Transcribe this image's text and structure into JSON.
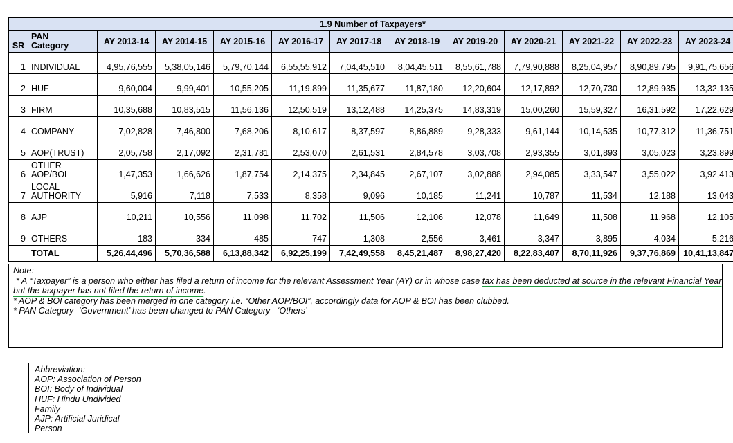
{
  "table": {
    "title": "1.9 Number of Taxpayers*",
    "col_sr": "SR",
    "col_pan_line1": "PAN",
    "col_pan_line2": "Category",
    "years": [
      "AY 2013-14",
      "AY 2014-15",
      "AY 2015-16",
      "AY 2016-17",
      "AY 2017-18",
      "AY 2018-19",
      "AY 2019-20",
      "AY 2020-21",
      "AY 2021-22",
      "AY 2022-23",
      "AY 2023-24"
    ],
    "rows": [
      {
        "sr": "1",
        "cat1": "",
        "cat2": "INDIVIDUAL",
        "values": [
          "4,95,76,555",
          "5,38,05,146",
          "5,79,70,144",
          "6,55,55,912",
          "7,04,45,510",
          "8,04,45,511",
          "8,55,61,788",
          "7,79,90,888",
          "8,25,04,957",
          "8,90,89,795",
          "9,91,75,656"
        ]
      },
      {
        "sr": "2",
        "cat1": "",
        "cat2": "HUF",
        "values": [
          "9,60,004",
          "9,99,401",
          "10,55,205",
          "11,19,899",
          "11,35,677",
          "11,87,180",
          "12,20,604",
          "12,17,892",
          "12,70,730",
          "12,89,935",
          "13,32,135"
        ]
      },
      {
        "sr": "3",
        "cat1": "",
        "cat2": "FIRM",
        "values": [
          "10,35,688",
          "10,83,515",
          "11,56,136",
          "12,50,519",
          "13,12,488",
          "14,25,375",
          "14,83,319",
          "15,00,260",
          "15,59,327",
          "16,31,592",
          "17,22,629"
        ]
      },
      {
        "sr": "4",
        "cat1": "",
        "cat2": "COMPANY",
        "values": [
          "7,02,828",
          "7,46,800",
          "7,68,206",
          "8,10,617",
          "8,37,597",
          "8,86,889",
          "9,28,333",
          "9,61,144",
          "10,14,535",
          "10,77,312",
          "11,36,751"
        ]
      },
      {
        "sr": "5",
        "cat1": "",
        "cat2": "AOP(TRUST)",
        "values": [
          "2,05,758",
          "2,17,092",
          "2,31,781",
          "2,53,070",
          "2,61,531",
          "2,84,578",
          "3,03,708",
          "2,93,355",
          "3,01,893",
          "3,05,023",
          "3,23,899"
        ]
      },
      {
        "sr": "6",
        "cat1": "OTHER",
        "cat2": "AOP/BOI",
        "values": [
          "1,47,353",
          "1,66,626",
          "1,87,754",
          "2,14,375",
          "2,34,845",
          "2,67,107",
          "3,02,888",
          "2,94,085",
          "3,33,547",
          "3,55,022",
          "3,92,413"
        ]
      },
      {
        "sr": "7",
        "cat1": "LOCAL",
        "cat2": "AUTHORITY",
        "values": [
          "5,916",
          "7,118",
          "7,533",
          "8,358",
          "9,096",
          "10,185",
          "11,241",
          "10,787",
          "11,534",
          "12,188",
          "13,043"
        ]
      },
      {
        "sr": "8",
        "cat1": "",
        "cat2": "AJP",
        "values": [
          "10,211",
          "10,556",
          "11,098",
          "11,702",
          "11,506",
          "12,106",
          "12,078",
          "11,649",
          "11,508",
          "11,968",
          "12,105"
        ]
      },
      {
        "sr": "9",
        "cat1": "",
        "cat2": "OTHERS",
        "values": [
          "183",
          "334",
          "485",
          "747",
          "1,308",
          "2,556",
          "3,461",
          "3,347",
          "3,895",
          "4,034",
          "5,216"
        ]
      }
    ],
    "total": {
      "label": "TOTAL",
      "values": [
        "5,26,44,496",
        "5,70,36,588",
        "6,13,88,342",
        "6,92,25,199",
        "7,42,49,558",
        "8,45,21,487",
        "8,98,27,420",
        "8,22,83,407",
        "8,70,11,926",
        "9,37,76,869",
        "10,41,13,847"
      ]
    }
  },
  "note": {
    "heading": "Note:",
    "line1_plain": " * A “Taxpayer” is a person who either has filed a return of income for the relevant Assessment Year (AY) or in whose case ",
    "line1_underlined": "tax has been deducted at source in the relevant Financial Year",
    "line2_underlined": "but the taxpayer has not filed the return of income",
    "line2_plain": ".",
    "line3": "* AOP & BOI category has been merged in one category i.e. “Other AOP/BOI”, accordingly data for AOP & BOI has been clubbed.",
    "line4": "* PAN Category- ‘Government’ has been changed to PAN Category –‘Others’",
    "underline_color": "#1f9d3f"
  },
  "abbreviations": {
    "heading": "Abbreviation:",
    "lines": [
      "AOP: Association of Person",
      "BOI:  Body of Individual",
      "HUF:  Hindu Undivided",
      "Family",
      "AJP:  Artificial Juridical",
      "Person"
    ]
  },
  "colors": {
    "header_bg": "#d9e2f3"
  }
}
